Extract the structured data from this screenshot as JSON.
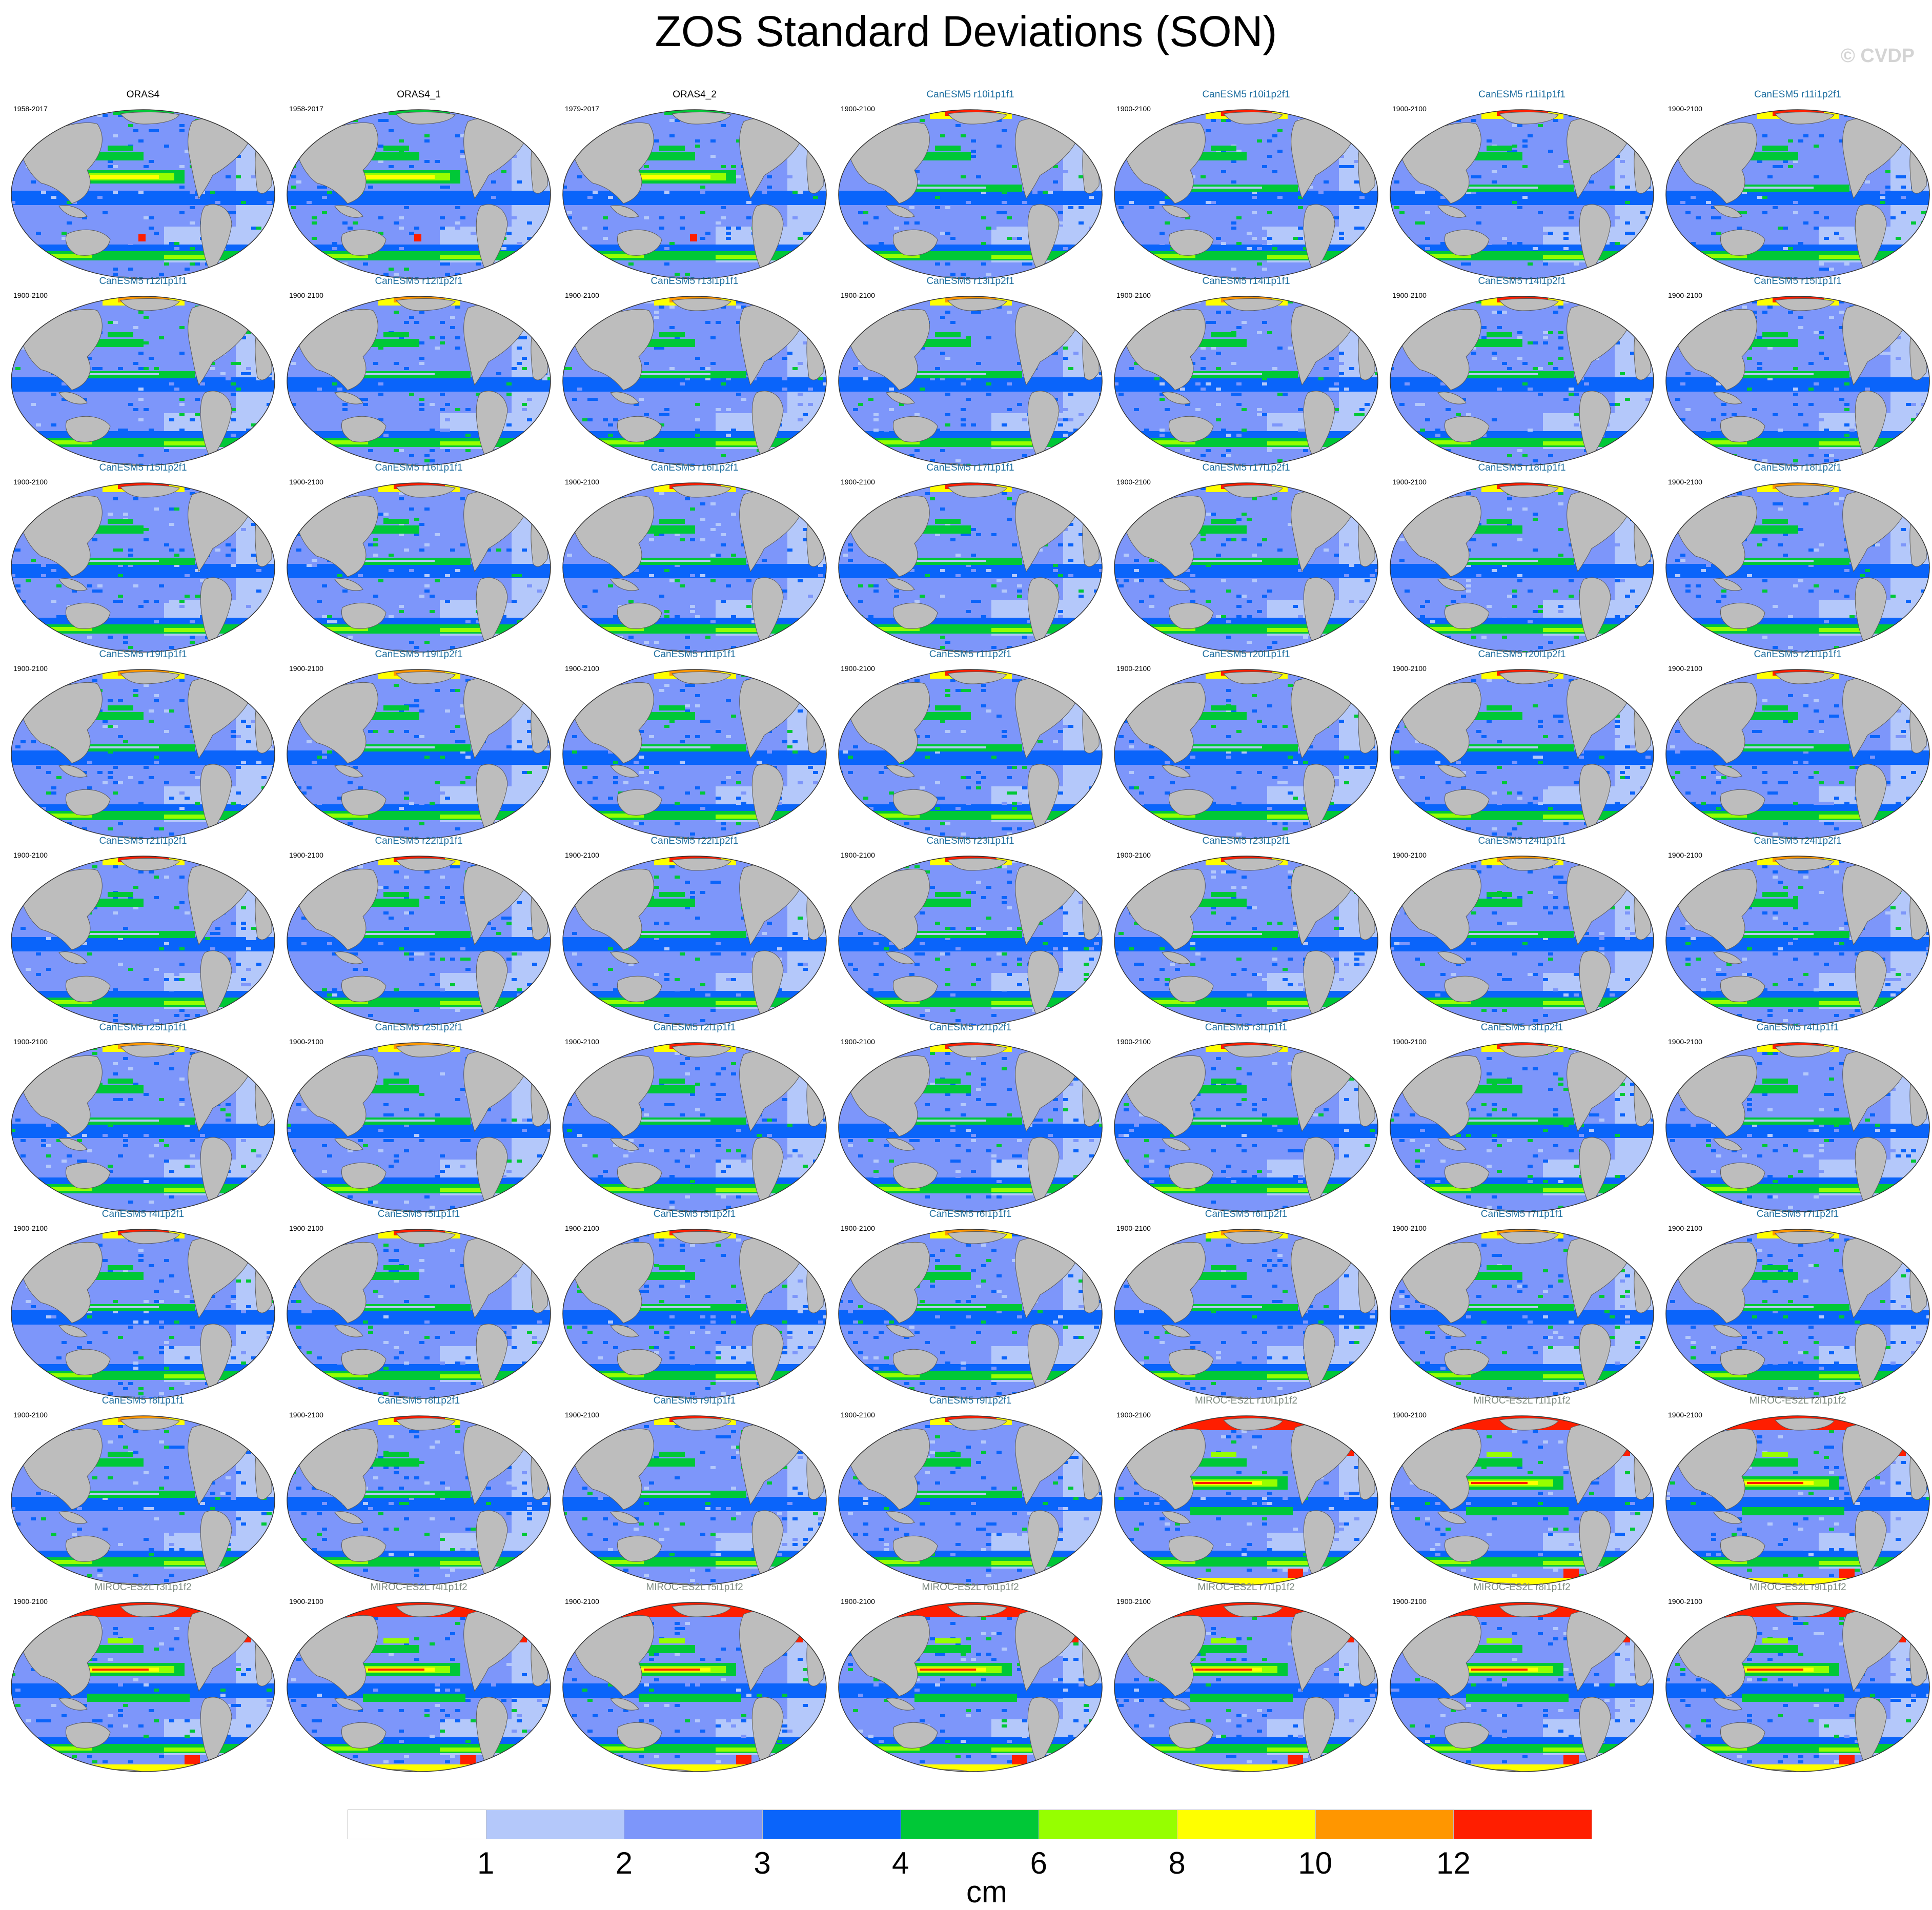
{
  "title": "ZOS Standard Deviations (SON)",
  "credit": "© CVDP",
  "colors": {
    "land": "#bdbdbd",
    "title_observation": "#000000",
    "title_canesm5": "#1f6fa0",
    "title_miroc": "#7d8a80"
  },
  "panels": [
    {
      "title": "ORAS4",
      "years": "1958-2017",
      "group": "obs"
    },
    {
      "title": "ORAS4_1",
      "years": "1958-2017",
      "group": "obs"
    },
    {
      "title": "ORAS4_2",
      "years": "1979-2017",
      "group": "obs"
    },
    {
      "title": "CanESM5 r10i1p1f1",
      "years": "1900-2100",
      "group": "canesm5"
    },
    {
      "title": "CanESM5 r10i1p2f1",
      "years": "1900-2100",
      "group": "canesm5"
    },
    {
      "title": "CanESM5 r11i1p1f1",
      "years": "1900-2100",
      "group": "canesm5"
    },
    {
      "title": "CanESM5 r11i1p2f1",
      "years": "1900-2100",
      "group": "canesm5"
    },
    {
      "title": "CanESM5 r12i1p1f1",
      "years": "1900-2100",
      "group": "canesm5"
    },
    {
      "title": "CanESM5 r12i1p2f1",
      "years": "1900-2100",
      "group": "canesm5"
    },
    {
      "title": "CanESM5 r13i1p1f1",
      "years": "1900-2100",
      "group": "canesm5"
    },
    {
      "title": "CanESM5 r13i1p2f1",
      "years": "1900-2100",
      "group": "canesm5"
    },
    {
      "title": "CanESM5 r14i1p1f1",
      "years": "1900-2100",
      "group": "canesm5"
    },
    {
      "title": "CanESM5 r14i1p2f1",
      "years": "1900-2100",
      "group": "canesm5"
    },
    {
      "title": "CanESM5 r15i1p1f1",
      "years": "1900-2100",
      "group": "canesm5"
    },
    {
      "title": "CanESM5 r15i1p2f1",
      "years": "1900-2100",
      "group": "canesm5"
    },
    {
      "title": "CanESM5 r16i1p1f1",
      "years": "1900-2100",
      "group": "canesm5"
    },
    {
      "title": "CanESM5 r16i1p2f1",
      "years": "1900-2100",
      "group": "canesm5"
    },
    {
      "title": "CanESM5 r17i1p1f1",
      "years": "1900-2100",
      "group": "canesm5"
    },
    {
      "title": "CanESM5 r17i1p2f1",
      "years": "1900-2100",
      "group": "canesm5"
    },
    {
      "title": "CanESM5 r18i1p1f1",
      "years": "1900-2100",
      "group": "canesm5"
    },
    {
      "title": "CanESM5 r18i1p2f1",
      "years": "1900-2100",
      "group": "canesm5"
    },
    {
      "title": "CanESM5 r19i1p1f1",
      "years": "1900-2100",
      "group": "canesm5"
    },
    {
      "title": "CanESM5 r19i1p2f1",
      "years": "1900-2100",
      "group": "canesm5"
    },
    {
      "title": "CanESM5 r1i1p1f1",
      "years": "1900-2100",
      "group": "canesm5"
    },
    {
      "title": "CanESM5 r1i1p2f1",
      "years": "1900-2100",
      "group": "canesm5"
    },
    {
      "title": "CanESM5 r20i1p1f1",
      "years": "1900-2100",
      "group": "canesm5"
    },
    {
      "title": "CanESM5 r20i1p2f1",
      "years": "1900-2100",
      "group": "canesm5"
    },
    {
      "title": "CanESM5 r21i1p1f1",
      "years": "1900-2100",
      "group": "canesm5"
    },
    {
      "title": "CanESM5 r21i1p2f1",
      "years": "1900-2100",
      "group": "canesm5"
    },
    {
      "title": "CanESM5 r22i1p1f1",
      "years": "1900-2100",
      "group": "canesm5"
    },
    {
      "title": "CanESM5 r22i1p2f1",
      "years": "1900-2100",
      "group": "canesm5"
    },
    {
      "title": "CanESM5 r23i1p1f1",
      "years": "1900-2100",
      "group": "canesm5"
    },
    {
      "title": "CanESM5 r23i1p2f1",
      "years": "1900-2100",
      "group": "canesm5"
    },
    {
      "title": "CanESM5 r24i1p1f1",
      "years": "1900-2100",
      "group": "canesm5"
    },
    {
      "title": "CanESM5 r24i1p2f1",
      "years": "1900-2100",
      "group": "canesm5"
    },
    {
      "title": "CanESM5 r25i1p1f1",
      "years": "1900-2100",
      "group": "canesm5"
    },
    {
      "title": "CanESM5 r25i1p2f1",
      "years": "1900-2100",
      "group": "canesm5"
    },
    {
      "title": "CanESM5 r2i1p1f1",
      "years": "1900-2100",
      "group": "canesm5"
    },
    {
      "title": "CanESM5 r2i1p2f1",
      "years": "1900-2100",
      "group": "canesm5"
    },
    {
      "title": "CanESM5 r3i1p1f1",
      "years": "1900-2100",
      "group": "canesm5"
    },
    {
      "title": "CanESM5 r3i1p2f1",
      "years": "1900-2100",
      "group": "canesm5"
    },
    {
      "title": "CanESM5 r4i1p1f1",
      "years": "1900-2100",
      "group": "canesm5"
    },
    {
      "title": "CanESM5 r4i1p2f1",
      "years": "1900-2100",
      "group": "canesm5"
    },
    {
      "title": "CanESM5 r5i1p1f1",
      "years": "1900-2100",
      "group": "canesm5"
    },
    {
      "title": "CanESM5 r5i1p2f1",
      "years": "1900-2100",
      "group": "canesm5"
    },
    {
      "title": "CanESM5 r6i1p1f1",
      "years": "1900-2100",
      "group": "canesm5"
    },
    {
      "title": "CanESM5 r6i1p2f1",
      "years": "1900-2100",
      "group": "canesm5"
    },
    {
      "title": "CanESM5 r7i1p1f1",
      "years": "1900-2100",
      "group": "canesm5"
    },
    {
      "title": "CanESM5 r7i1p2f1",
      "years": "1900-2100",
      "group": "canesm5"
    },
    {
      "title": "CanESM5 r8i1p1f1",
      "years": "1900-2100",
      "group": "canesm5"
    },
    {
      "title": "CanESM5 r8i1p2f1",
      "years": "1900-2100",
      "group": "canesm5"
    },
    {
      "title": "CanESM5 r9i1p1f1",
      "years": "1900-2100",
      "group": "canesm5"
    },
    {
      "title": "CanESM5 r9i1p2f1",
      "years": "1900-2100",
      "group": "canesm5"
    },
    {
      "title": "MIROC-ES2L r10i1p1f2",
      "years": "1900-2100",
      "group": "miroc"
    },
    {
      "title": "MIROC-ES2L r1i1p1f2",
      "years": "1900-2100",
      "group": "miroc"
    },
    {
      "title": "MIROC-ES2L r2i1p1f2",
      "years": "1900-2100",
      "group": "miroc"
    },
    {
      "title": "MIROC-ES2L r3i1p1f2",
      "years": "1900-2100",
      "group": "miroc"
    },
    {
      "title": "MIROC-ES2L r4i1p1f2",
      "years": "1900-2100",
      "group": "miroc"
    },
    {
      "title": "MIROC-ES2L r5i1p1f2",
      "years": "1900-2100",
      "group": "miroc"
    },
    {
      "title": "MIROC-ES2L r6i1p1f2",
      "years": "1900-2100",
      "group": "miroc"
    },
    {
      "title": "MIROC-ES2L r7i1p1f2",
      "years": "1900-2100",
      "group": "miroc"
    },
    {
      "title": "MIROC-ES2L r8i1p1f2",
      "years": "1900-2100",
      "group": "miroc"
    },
    {
      "title": "MIROC-ES2L r9i1p1f2",
      "years": "1900-2100",
      "group": "miroc"
    }
  ],
  "colorbar": {
    "units": "cm",
    "colors": [
      "#ffffff",
      "#b4c8fa",
      "#7d96fa",
      "#0a64fa",
      "#00c837",
      "#96ff00",
      "#ffff00",
      "#ff9600",
      "#ff1e00"
    ],
    "ticks": [
      "1",
      "2",
      "3",
      "4",
      "6",
      "8",
      "10",
      "12"
    ]
  }
}
